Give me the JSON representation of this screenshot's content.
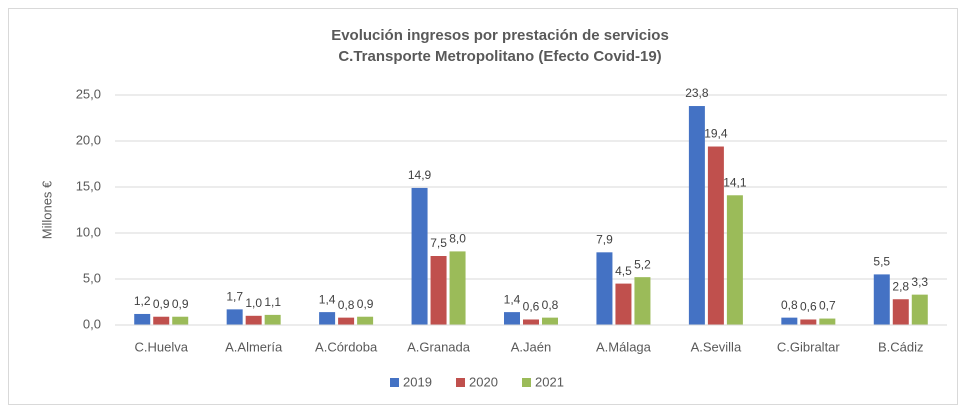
{
  "chart_data": {
    "type": "bar",
    "title": "Evolución ingresos por prestación de servicios",
    "subtitle": "C.Transporte Metropolitano (Efecto Covid-19)",
    "y_label": "Millones €",
    "categories": [
      "C.Huelva",
      "A.Almería",
      "A.Córdoba",
      "A.Granada",
      "A.Jaén",
      "A.Málaga",
      "A.Sevilla",
      "C.Gibraltar",
      "B.Cádiz"
    ],
    "series": [
      {
        "name": "2019",
        "color": "#4472c4",
        "values": [
          1.2,
          1.7,
          1.4,
          14.9,
          1.4,
          7.9,
          23.8,
          0.8,
          5.5
        ],
        "value_labels": [
          "1,2",
          "1,7",
          "1,4",
          "14,9",
          "1,4",
          "7,9",
          "23,8",
          "0,8",
          "5,5"
        ]
      },
      {
        "name": "2020",
        "color": "#c0504d",
        "values": [
          0.9,
          1.0,
          0.8,
          7.5,
          0.6,
          4.5,
          19.4,
          0.6,
          2.8
        ],
        "value_labels": [
          "0,9",
          "1,0",
          "0,8",
          "7,5",
          "0,6",
          "4,5",
          "19,4",
          "0,6",
          "2,8"
        ]
      },
      {
        "name": "2021",
        "color": "#9bbb59",
        "values": [
          0.9,
          1.1,
          0.9,
          8.0,
          0.8,
          5.2,
          14.1,
          0.7,
          3.3
        ],
        "value_labels": [
          "0,9",
          "1,1",
          "0,9",
          "8,0",
          "0,8",
          "5,2",
          "14,1",
          "0,7",
          "3,3"
        ]
      }
    ],
    "ylim": [
      0,
      25
    ],
    "yticks": [
      {
        "value": 0,
        "label": "0,0"
      },
      {
        "value": 5,
        "label": "5,0"
      },
      {
        "value": 10,
        "label": "10,0"
      },
      {
        "value": 15,
        "label": "15,0"
      },
      {
        "value": 20,
        "label": "20,0"
      },
      {
        "value": 25,
        "label": "25,0"
      }
    ],
    "grid": true,
    "legend": "bottom"
  }
}
